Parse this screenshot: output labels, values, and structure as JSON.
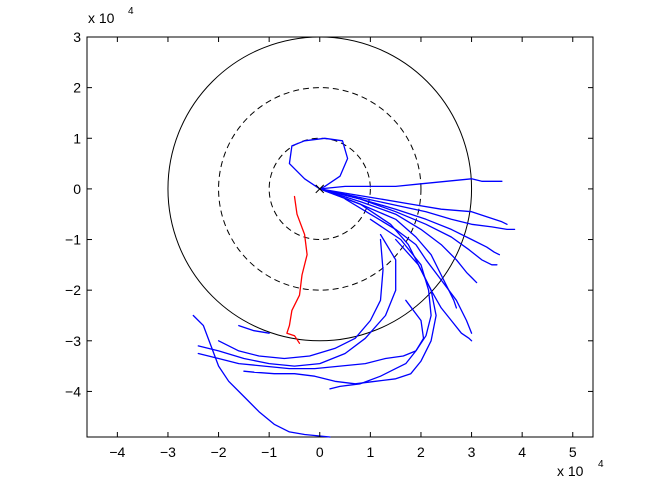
{
  "chart_data": {
    "type": "line",
    "title": "",
    "xlabel": "",
    "ylabel": "",
    "xlim": [
      -4.6,
      5.4
    ],
    "ylim": [
      -4.9,
      3.0
    ],
    "x_ticks": [
      -4,
      -3,
      -2,
      -1,
      0,
      1,
      2,
      3,
      4,
      5
    ],
    "y_ticks": [
      -4,
      -3,
      -2,
      -1,
      0,
      1,
      2,
      3
    ],
    "x_tick_labels": [
      "−4",
      "−3",
      "−2",
      "−1",
      "0",
      "1",
      "2",
      "3",
      "4",
      "5"
    ],
    "y_tick_labels": [
      "−4",
      "−3",
      "−2",
      "−1",
      "0",
      "1",
      "2",
      "3"
    ],
    "x_multiplier": "x 10",
    "x_exponent": "4",
    "y_multiplier": "x 10",
    "y_exponent": "4",
    "grid": false,
    "circles": [
      {
        "cx": 0,
        "cy": 0,
        "r": 3,
        "style": "solid",
        "color": "#000000"
      },
      {
        "cx": 0,
        "cy": 0,
        "r": 2,
        "style": "dashed",
        "color": "#000000"
      },
      {
        "cx": 0,
        "cy": 0,
        "r": 1,
        "style": "dashed",
        "color": "#000000"
      }
    ],
    "origin_marker": {
      "x": 0,
      "y": 0,
      "symbol": "x",
      "color": "#000000"
    },
    "series": [
      {
        "color": "#ff0000",
        "x": [
          -0.5,
          -0.45,
          -0.3,
          -0.25,
          -0.35,
          -0.4,
          -0.55,
          -0.6,
          -0.65,
          -0.5,
          -0.4
        ],
        "y": [
          -0.15,
          -0.5,
          -0.9,
          -1.3,
          -1.7,
          -2.1,
          -2.4,
          -2.7,
          -2.85,
          -2.9,
          -3.05
        ]
      },
      {
        "color": "#0000ff",
        "x": [
          0,
          -0.3,
          -0.6,
          -0.55,
          -0.3,
          0.1,
          0.45,
          0.55,
          0.4,
          0.1,
          0
        ],
        "y": [
          0,
          0.2,
          0.5,
          0.85,
          0.95,
          1.0,
          0.95,
          0.6,
          0.25,
          0.05,
          0
        ]
      },
      {
        "color": "#0000ff",
        "x": [
          0,
          0.5,
          1.0,
          1.5,
          2.0,
          2.5,
          3.0,
          3.2,
          3.35,
          3.6
        ],
        "y": [
          0,
          0.05,
          0.05,
          0.05,
          0.1,
          0.15,
          0.2,
          0.15,
          0.15,
          0.15
        ]
      },
      {
        "color": "#0000ff",
        "x": [
          0,
          0.6,
          1.2,
          1.8,
          2.4,
          3.0,
          3.3,
          3.6,
          3.7
        ],
        "y": [
          0,
          -0.1,
          -0.2,
          -0.3,
          -0.4,
          -0.45,
          -0.55,
          -0.65,
          -0.7
        ]
      },
      {
        "color": "#0000ff",
        "x": [
          0,
          0.7,
          1.4,
          2.1,
          2.6,
          3.0,
          3.4,
          3.7,
          3.85
        ],
        "y": [
          0,
          -0.15,
          -0.3,
          -0.45,
          -0.6,
          -0.7,
          -0.75,
          -0.8,
          -0.8
        ]
      },
      {
        "color": "#0000ff",
        "x": [
          0,
          0.8,
          1.5,
          2.1,
          2.6,
          3.0,
          3.3,
          3.45,
          3.55
        ],
        "y": [
          0,
          -0.2,
          -0.4,
          -0.6,
          -0.8,
          -1.0,
          -1.15,
          -1.25,
          -1.3
        ]
      },
      {
        "color": "#0000ff",
        "x": [
          0,
          0.8,
          1.5,
          2.1,
          2.6,
          2.95,
          3.2,
          3.4,
          3.5
        ],
        "y": [
          0,
          -0.2,
          -0.45,
          -0.7,
          -0.95,
          -1.2,
          -1.4,
          -1.5,
          -1.5
        ]
      },
      {
        "color": "#0000ff",
        "x": [
          0,
          0.8,
          1.5,
          2.0,
          2.4,
          2.7,
          2.9,
          3.0,
          3.1
        ],
        "y": [
          0,
          -0.25,
          -0.5,
          -0.8,
          -1.1,
          -1.4,
          -1.65,
          -1.75,
          -1.85
        ]
      },
      {
        "color": "#0000ff",
        "x": [
          0,
          0.8,
          1.5,
          1.9,
          2.2,
          2.4,
          2.55,
          2.65,
          2.7
        ],
        "y": [
          0,
          -0.3,
          -0.6,
          -0.95,
          -1.3,
          -1.7,
          -2.0,
          -2.2,
          -2.35
        ]
      },
      {
        "color": "#0000ff",
        "x": [
          0,
          0.8,
          1.4,
          1.75,
          2.0,
          2.2,
          2.4,
          2.6,
          2.8,
          2.95,
          3.0
        ],
        "y": [
          0,
          -0.3,
          -0.7,
          -1.1,
          -1.6,
          -2.0,
          -2.35,
          -2.6,
          -2.85,
          -2.95,
          -3.0
        ]
      },
      {
        "color": "#0000ff",
        "x": [
          0.5,
          1.0,
          1.5,
          1.9,
          2.1,
          2.4,
          2.7,
          2.9,
          3.0
        ],
        "y": [
          -0.2,
          -0.5,
          -0.8,
          -1.1,
          -1.4,
          -1.8,
          -2.2,
          -2.6,
          -2.85
        ]
      },
      {
        "color": "#0000ff",
        "x": [
          1.0,
          1.6,
          2.0,
          2.15,
          2.2,
          2.1,
          1.9,
          1.7,
          1.5,
          1.2,
          0.8,
          0.4,
          0.2
        ],
        "y": [
          -0.6,
          -1.0,
          -1.5,
          -2.0,
          -2.5,
          -2.9,
          -3.2,
          -3.45,
          -3.55,
          -3.7,
          -3.85,
          -3.9,
          -3.95
        ]
      },
      {
        "color": "#0000ff",
        "x": [
          1.5,
          1.95,
          2.2,
          2.3,
          2.2,
          2.0,
          1.8,
          1.5,
          1.1,
          0.7,
          0.3,
          -0.1,
          -0.5,
          -0.9,
          -1.3,
          -1.5
        ],
        "y": [
          -1.0,
          -1.5,
          -2.0,
          -2.5,
          -3.0,
          -3.4,
          -3.65,
          -3.75,
          -3.8,
          -3.85,
          -3.8,
          -3.7,
          -3.65,
          -3.65,
          -3.62,
          -3.6
        ]
      },
      {
        "color": "#0000ff",
        "x": [
          1.7,
          2.0,
          2.05,
          1.9,
          1.65,
          1.3,
          0.9,
          0.4,
          -0.1,
          -0.6,
          -1.1,
          -1.6,
          -2.0,
          -2.4
        ],
        "y": [
          -2.2,
          -2.6,
          -2.95,
          -3.2,
          -3.3,
          -3.35,
          -3.45,
          -3.5,
          -3.55,
          -3.55,
          -3.5,
          -3.45,
          -3.35,
          -3.25
        ]
      },
      {
        "color": "#0000ff",
        "x": [
          1.2,
          1.5,
          1.5,
          1.3,
          0.9,
          0.5,
          0,
          -0.5,
          -1.0,
          -1.5,
          -2.0,
          -2.4
        ],
        "y": [
          -0.9,
          -1.4,
          -2.0,
          -2.5,
          -2.95,
          -3.25,
          -3.45,
          -3.5,
          -3.45,
          -3.35,
          -3.2,
          -3.1
        ]
      },
      {
        "color": "#0000ff",
        "x": [
          1.2,
          1.25,
          1.2,
          1.0,
          0.7,
          0.3,
          -0.2,
          -0.7,
          -1.2,
          -1.6,
          -2.0
        ],
        "y": [
          -1.0,
          -1.6,
          -2.2,
          -2.6,
          -2.95,
          -3.15,
          -3.3,
          -3.35,
          -3.3,
          -3.2,
          -3.0
        ]
      },
      {
        "color": "#0000ff",
        "x": [
          -2.5,
          -2.3,
          -2.15,
          -2.0,
          -1.8,
          -1.5,
          -1.2,
          -0.9,
          -0.6,
          -0.3,
          0,
          0.2
        ],
        "y": [
          -2.5,
          -2.7,
          -3.1,
          -3.5,
          -3.8,
          -4.1,
          -4.4,
          -4.65,
          -4.8,
          -4.85,
          -4.88,
          -4.9
        ]
      },
      {
        "color": "#0000ff",
        "x": [
          -1.6,
          -1.3,
          -1.0
        ],
        "y": [
          -2.7,
          -2.8,
          -2.85
        ]
      }
    ]
  }
}
